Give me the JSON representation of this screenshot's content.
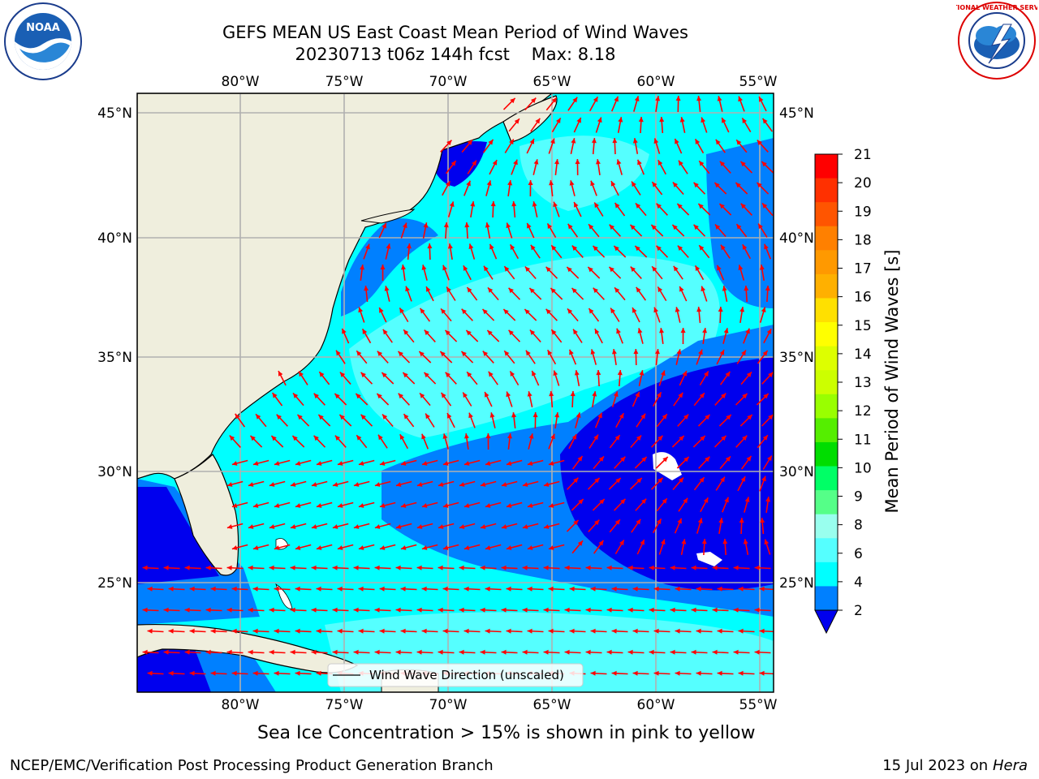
{
  "header": {
    "title_line1": "GEFS MEAN US East Coast Mean Period of Wind Waves",
    "title_line2": "20230713 t06z 144h fcst    Max: 8.18"
  },
  "logos": {
    "left": {
      "name": "noaa-logo",
      "text": "NOAA",
      "ring_text": "NATIONAL OCEANIC AND ATMOSPHERIC ADMINISTRATION · U.S. DEPARTMENT OF COMMERCE"
    },
    "right": {
      "name": "nws-logo",
      "ring_text": "NATIONAL WEATHER SERVICE"
    }
  },
  "map": {
    "lon_labels": [
      "80°W",
      "75°W",
      "70°W",
      "65°W",
      "60°W",
      "55°W"
    ],
    "lat_labels": [
      "45°N",
      "40°N",
      "35°N",
      "30°N",
      "25°N"
    ],
    "legend_label": "Wind Wave Direction (unscaled)",
    "colors": {
      "land": "#efeedd",
      "ocean_2_4": "#0080ff",
      "ocean_lt2": "#0000ee",
      "ocean_4_6": "#00ffff",
      "ocean_6_8": "#55ffff",
      "arrow": "#ff0000",
      "grid": "#b0b0b0"
    }
  },
  "colorbar": {
    "label": "Mean Period of Wind Waves [s]",
    "ticks": [
      "21",
      "20",
      "19",
      "18",
      "17",
      "16",
      "15",
      "14",
      "13",
      "12",
      "11",
      "10",
      "9",
      "8",
      "6",
      "4",
      "2"
    ],
    "colors": [
      "#ff0000",
      "#ff3000",
      "#ff5500",
      "#ff8000",
      "#ff9900",
      "#ffb000",
      "#ffe000",
      "#ffff00",
      "#ddff00",
      "#ccff00",
      "#99ff00",
      "#55ee00",
      "#00dd00",
      "#00ff66",
      "#55ff88",
      "#99ffee",
      "#55ffff",
      "#00ffff",
      "#0080ff",
      "#0000ee"
    ]
  },
  "footer": {
    "note": "Sea Ice Concentration > 15% is shown in pink to yellow",
    "credit": "NCEP/EMC/Verification Post Processing Product Generation Branch",
    "date": "15 Jul 2023 on",
    "host": "Hera"
  }
}
